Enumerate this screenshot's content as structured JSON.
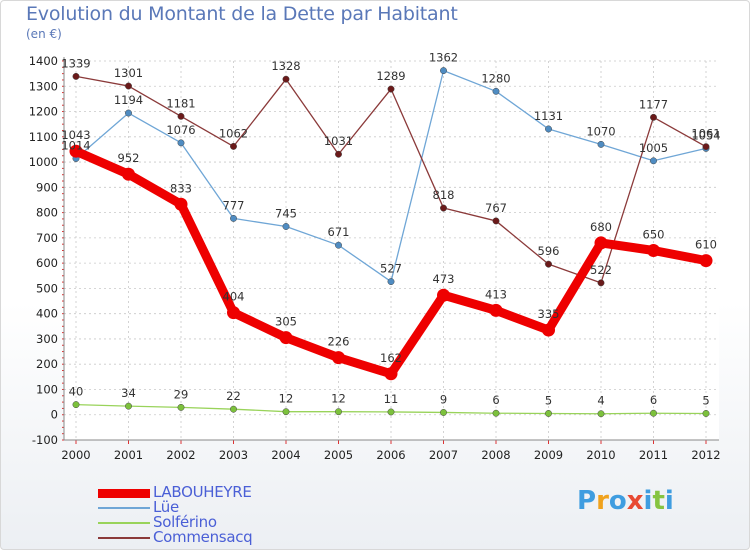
{
  "header": {
    "title": "Evolution du Montant de la Dette par Habitant",
    "unit": "(en €)"
  },
  "chart_data": {
    "type": "line",
    "title": "Evolution du Montant de la Dette par Habitant",
    "ylabel": "(en €)",
    "xlabel": "",
    "ylim": [
      -100,
      1400
    ],
    "y_ticks": [
      -100,
      0,
      100,
      200,
      300,
      400,
      500,
      600,
      700,
      800,
      900,
      1000,
      1100,
      1200,
      1300,
      1400
    ],
    "grid": true,
    "legend_position": "bottom-left",
    "categories": [
      "2000",
      "2001",
      "2002",
      "2003",
      "2004",
      "2005",
      "2006",
      "2007",
      "2008",
      "2009",
      "2010",
      "2011",
      "2012"
    ],
    "series": [
      {
        "name": "LABOUHEYRE",
        "color": "#ee0000",
        "values": [
          1043,
          952,
          833,
          404,
          305,
          226,
          162,
          473,
          413,
          335,
          680,
          650,
          610
        ]
      },
      {
        "name": "Lüe",
        "color": "#6fa6d6",
        "values": [
          1014,
          1194,
          1076,
          777,
          745,
          671,
          527,
          1362,
          1280,
          1131,
          1070,
          1005,
          1054
        ]
      },
      {
        "name": "Solférino",
        "color": "#99d35a",
        "values": [
          40,
          34,
          29,
          22,
          12,
          12,
          11,
          9,
          6,
          5,
          4,
          6,
          5
        ]
      },
      {
        "name": "Commensacq",
        "color": "#8b3a3a",
        "values": [
          1339,
          1301,
          1181,
          1062,
          1328,
          1031,
          1289,
          818,
          767,
          596,
          522,
          1177,
          1061
        ]
      }
    ]
  },
  "legend": {
    "items": [
      {
        "label": "LABOUHEYRE",
        "color": "#ee0000"
      },
      {
        "label": "Lüe",
        "color": "#6fa6d6"
      },
      {
        "label": "Solférino",
        "color": "#99d35a"
      },
      {
        "label": "Commensacq",
        "color": "#8b3a3a"
      }
    ]
  },
  "logo": {
    "text": "Proxiti",
    "letters": [
      "P",
      "r",
      "o",
      "x",
      "i",
      "t",
      "i"
    ],
    "colors": [
      "#3f9de0",
      "#f0a21d",
      "#3f9de0",
      "#e84a33",
      "#3f9de0",
      "#86c441",
      "#3f9de0"
    ]
  }
}
